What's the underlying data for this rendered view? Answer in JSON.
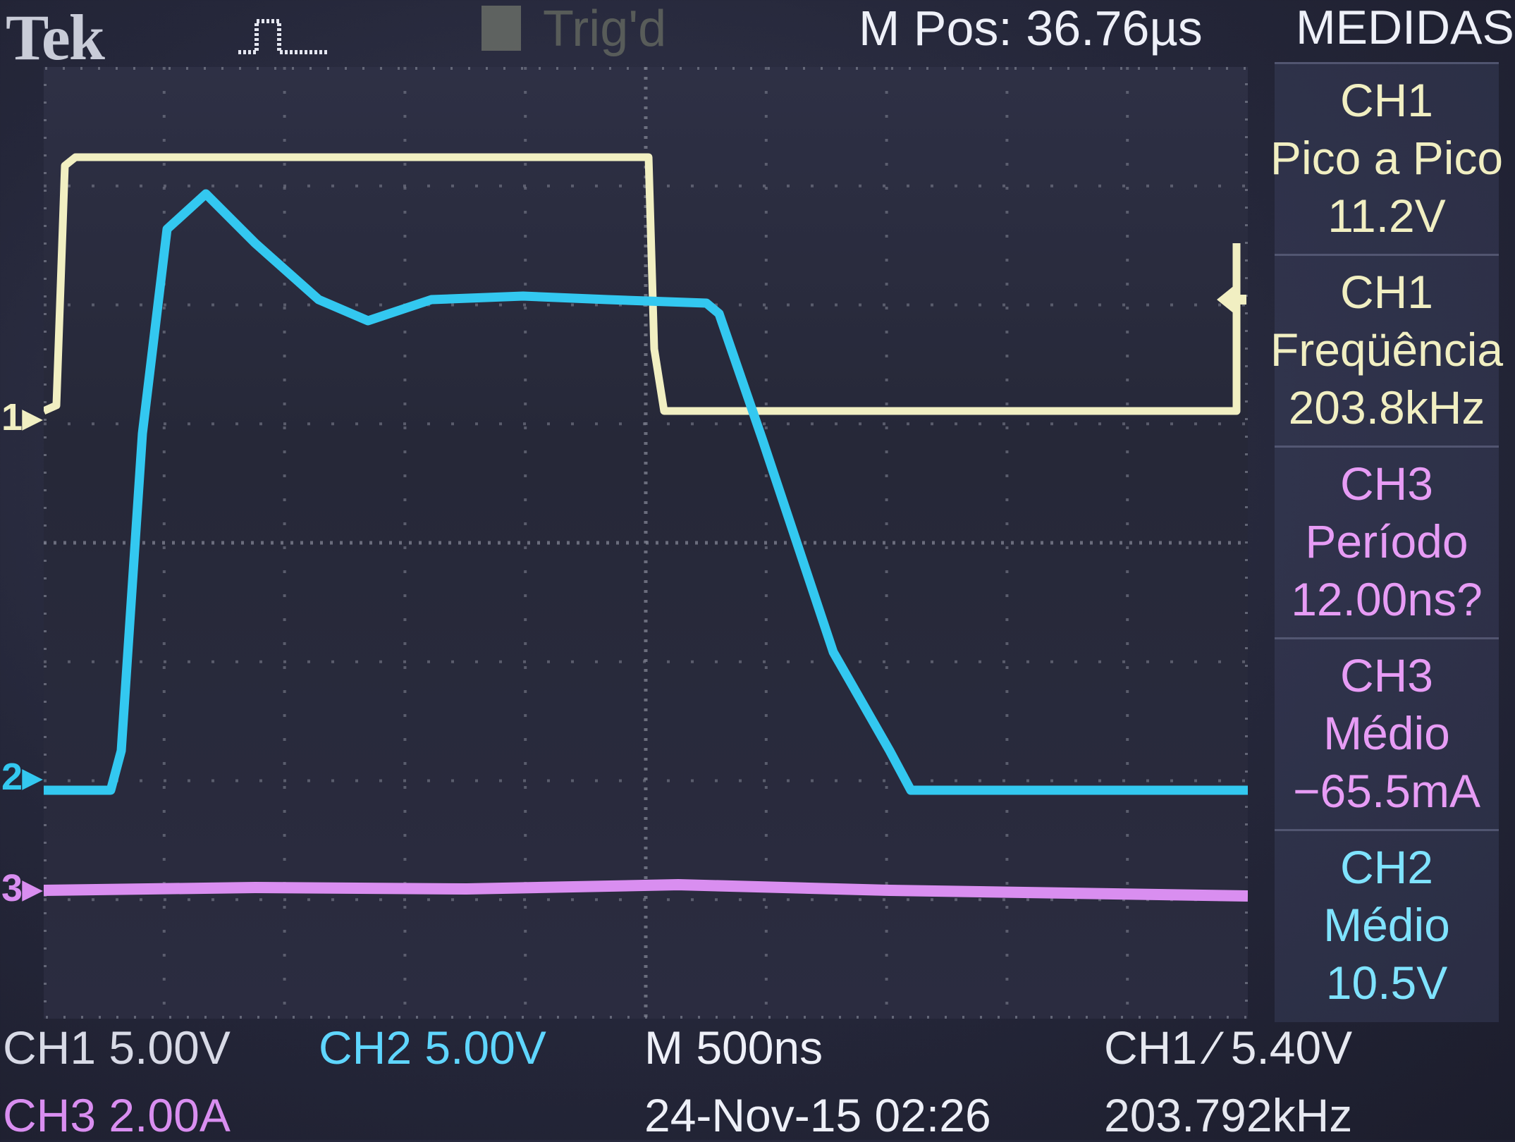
{
  "header": {
    "brand": "Tek",
    "acquisition_state": "Trig'd",
    "m_pos": "M Pos: 36.76µs"
  },
  "measurements": {
    "title": "MEDIDAS",
    "items": [
      {
        "channel": "CH1",
        "type": "Pico a Pico",
        "value": "11.2V",
        "color": "#f1efc2"
      },
      {
        "channel": "CH1",
        "type": "Freqüência",
        "value": "203.8kHz",
        "color": "#f1efc2"
      },
      {
        "channel": "CH3",
        "type": "Período",
        "value": "12.00ns?",
        "color": "#e79cf5"
      },
      {
        "channel": "CH3",
        "type": "Médio",
        "value": "−65.5mA",
        "color": "#e79cf5"
      },
      {
        "channel": "CH2",
        "type": "Médio",
        "value": "10.5V",
        "color": "#7fe3ff"
      }
    ]
  },
  "markers": {
    "ch1": "1",
    "ch2": "2",
    "ch3": "3"
  },
  "status": {
    "ch1_scale": "CH1  5.00V",
    "ch2_scale": "CH2  5.00V",
    "ch3_scale": "CH3  2.00A",
    "timebase": "M 500ns",
    "datetime": "24-Nov-15 02:26",
    "trigger": "CH1 ∕ 5.40V",
    "trigger_freq": "203.792kHz"
  },
  "colors": {
    "ch1": "#f1efc2",
    "ch2": "#33c8f0",
    "ch3": "#d98ef0",
    "text": "#eef0f8",
    "graticule": "#7c7f8e"
  }
}
